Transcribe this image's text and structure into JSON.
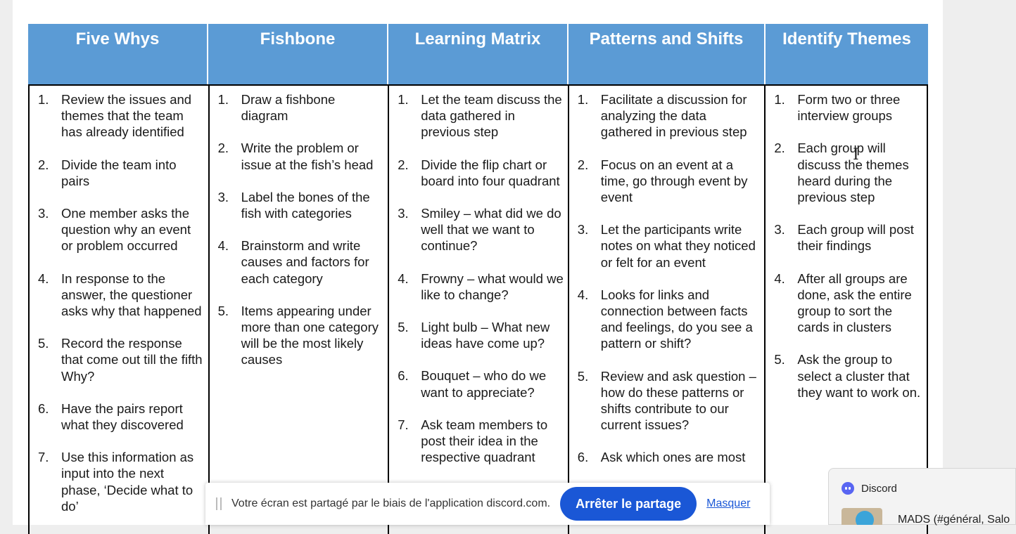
{
  "table": {
    "headers": [
      "Five Whys",
      "Fishbone",
      "Learning Matrix",
      "Patterns and Shifts",
      "Identify Themes"
    ],
    "columns": [
      [
        {
          "n": "1.",
          "t": "Review the issues and themes that the team has already identified"
        },
        {
          "n": "2.",
          "t": "Divide the team into pairs"
        },
        {
          "n": "3.",
          "t": "One member asks the question why an event or problem occurred"
        },
        {
          "n": "4.",
          "t": "In response to the answer, the questioner asks why that happened"
        },
        {
          "n": "5.",
          "t": "Record the response that come out till the fifth Why?"
        },
        {
          "n": "6.",
          "t": "Have the pairs report what they discovered"
        },
        {
          "n": "7.",
          "t": "Use this information as input into the next phase, ‘Decide what to do’"
        }
      ],
      [
        {
          "n": "1.",
          "t": "Draw a fishbone diagram"
        },
        {
          "n": "2.",
          "t": "Write the problem or issue at the fish’s head"
        },
        {
          "n": "3.",
          "t": "Label the bones of the fish with categories"
        },
        {
          "n": "4.",
          "t": "Brainstorm and write causes and factors for each category"
        },
        {
          "n": "5.",
          "t": "Items appearing under more than one category will be the most likely causes"
        }
      ],
      [
        {
          "n": "1.",
          "t": "Let the team discuss the data gathered in previous step"
        },
        {
          "n": "2.",
          "t": "Divide the flip chart or board into four quadrant"
        },
        {
          "n": "3.",
          "t": "Smiley – what did we do well that we want to continue?"
        },
        {
          "n": "4.",
          "t": "Frowny – what would we like to change?"
        },
        {
          "n": "5.",
          "t": "Light bulb – What new ideas have come up?"
        },
        {
          "n": "6.",
          "t": "Bouquet – who do we want to appreciate?"
        },
        {
          "n": "7.",
          "t": "Ask team members to post their idea in the respective quadrant"
        }
      ],
      [
        {
          "n": "1.",
          "t": "Facilitate a discussion for analyzing the data gathered in previous step"
        },
        {
          "n": "2.",
          "t": "Focus on an event at a time, go through event by event"
        },
        {
          "n": "3.",
          "t": "Let the participants write notes on what they noticed or felt for an event"
        },
        {
          "n": "4.",
          "t": "Looks for links and connection between facts and feelings, do you see a pattern or shift?"
        },
        {
          "n": "5.",
          "t": "Review and ask question – how do these patterns or shifts contribute to our current issues?"
        },
        {
          "n": "6.",
          "t": "Ask which ones are most"
        }
      ],
      [
        {
          "n": "1.",
          "t": "Form two or three interview groups"
        },
        {
          "n": "2.",
          "t": "Each group will discuss the themes heard during the previous step"
        },
        {
          "n": "3.",
          "t": "Each group will post their findings"
        },
        {
          "n": "4.",
          "t": "After all groups are done, ask the entire group to sort the cards in clusters"
        },
        {
          "n": "5.",
          "t": "Ask the group to select a cluster that they want to work on."
        }
      ]
    ]
  },
  "share_bar": {
    "message": "Votre écran est partagé par le biais de l'application discord.com.",
    "stop_label": "Arrêter le partage",
    "hide_label": "Masquer"
  },
  "discord_toast": {
    "app_name": "Discord",
    "message": "MADS (#général, Salo"
  },
  "colors": {
    "header_bg": "#5b9bd5",
    "button_blue": "#1a57d6"
  }
}
